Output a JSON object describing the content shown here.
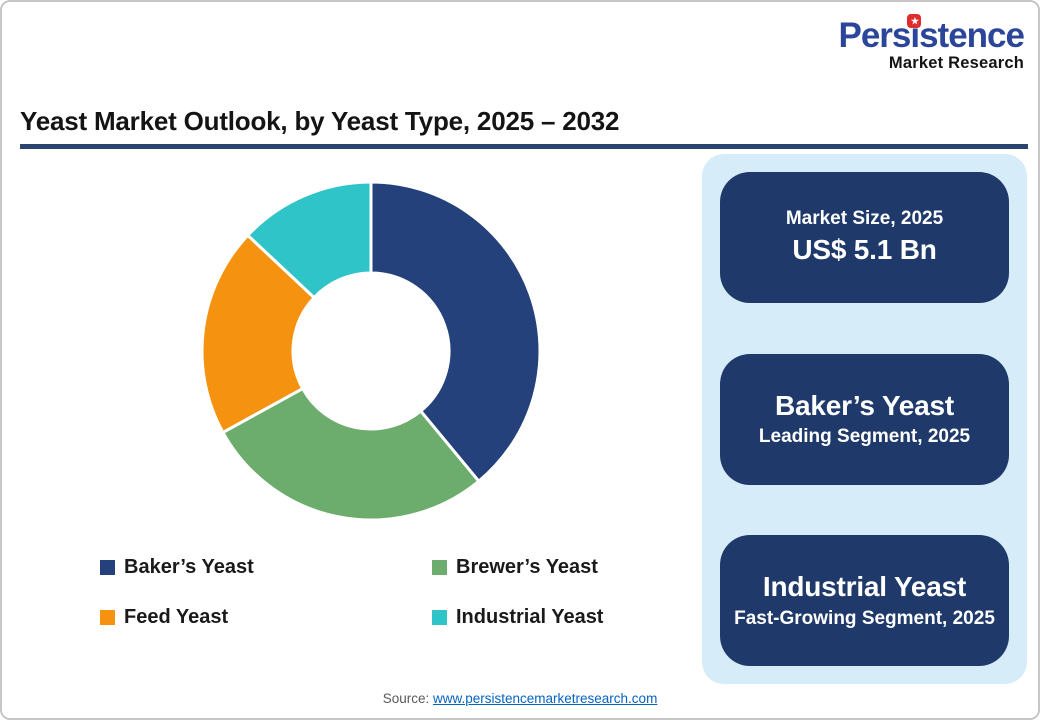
{
  "logo": {
    "brand": "Persistence",
    "tagline": "Market Research",
    "star": "★"
  },
  "title": "Yeast Market Outlook, by Yeast Type, 2025 – 2032",
  "chart_data": {
    "type": "pie",
    "subtype": "donut",
    "title": "Yeast Market Outlook, by Yeast Type, 2025 – 2032",
    "start_angle_deg": 0,
    "direction": "clockwise",
    "inner_radius_ratio": 0.46,
    "values_unit": "percent (estimated from arc angles; no data labels shown)",
    "segments": [
      {
        "label": "Baker’s Yeast",
        "value": 39,
        "color": "#24417b"
      },
      {
        "label": "Brewer’s Yeast",
        "value": 28,
        "color": "#6cac6c"
      },
      {
        "label": "Feed Yeast",
        "value": 20,
        "color": "#f5920f"
      },
      {
        "label": "Industrial Yeast",
        "value": 13,
        "color": "#2fc4c8"
      }
    ],
    "legend_position": "bottom",
    "grid": false
  },
  "panel": {
    "cards": [
      {
        "line1": "Market Size, 2025",
        "line2": "US$ 5.1 Bn"
      },
      {
        "line1": "Baker’s Yeast",
        "line2": "Leading Segment, 2025"
      },
      {
        "line1": "Industrial Yeast",
        "line2": "Fast-Growing Segment, 2025"
      }
    ]
  },
  "source": {
    "label": "Source:",
    "link": "www.persistencemarketresearch.com"
  },
  "colors": {
    "navy": "#1f3a6a",
    "panel_bg": "#d7ecf9",
    "title_underline": "#2a4470",
    "logo_blue": "#2a459a",
    "logo_red": "#e02b2b",
    "link_blue": "#0563c1",
    "source_gray": "#595959"
  }
}
